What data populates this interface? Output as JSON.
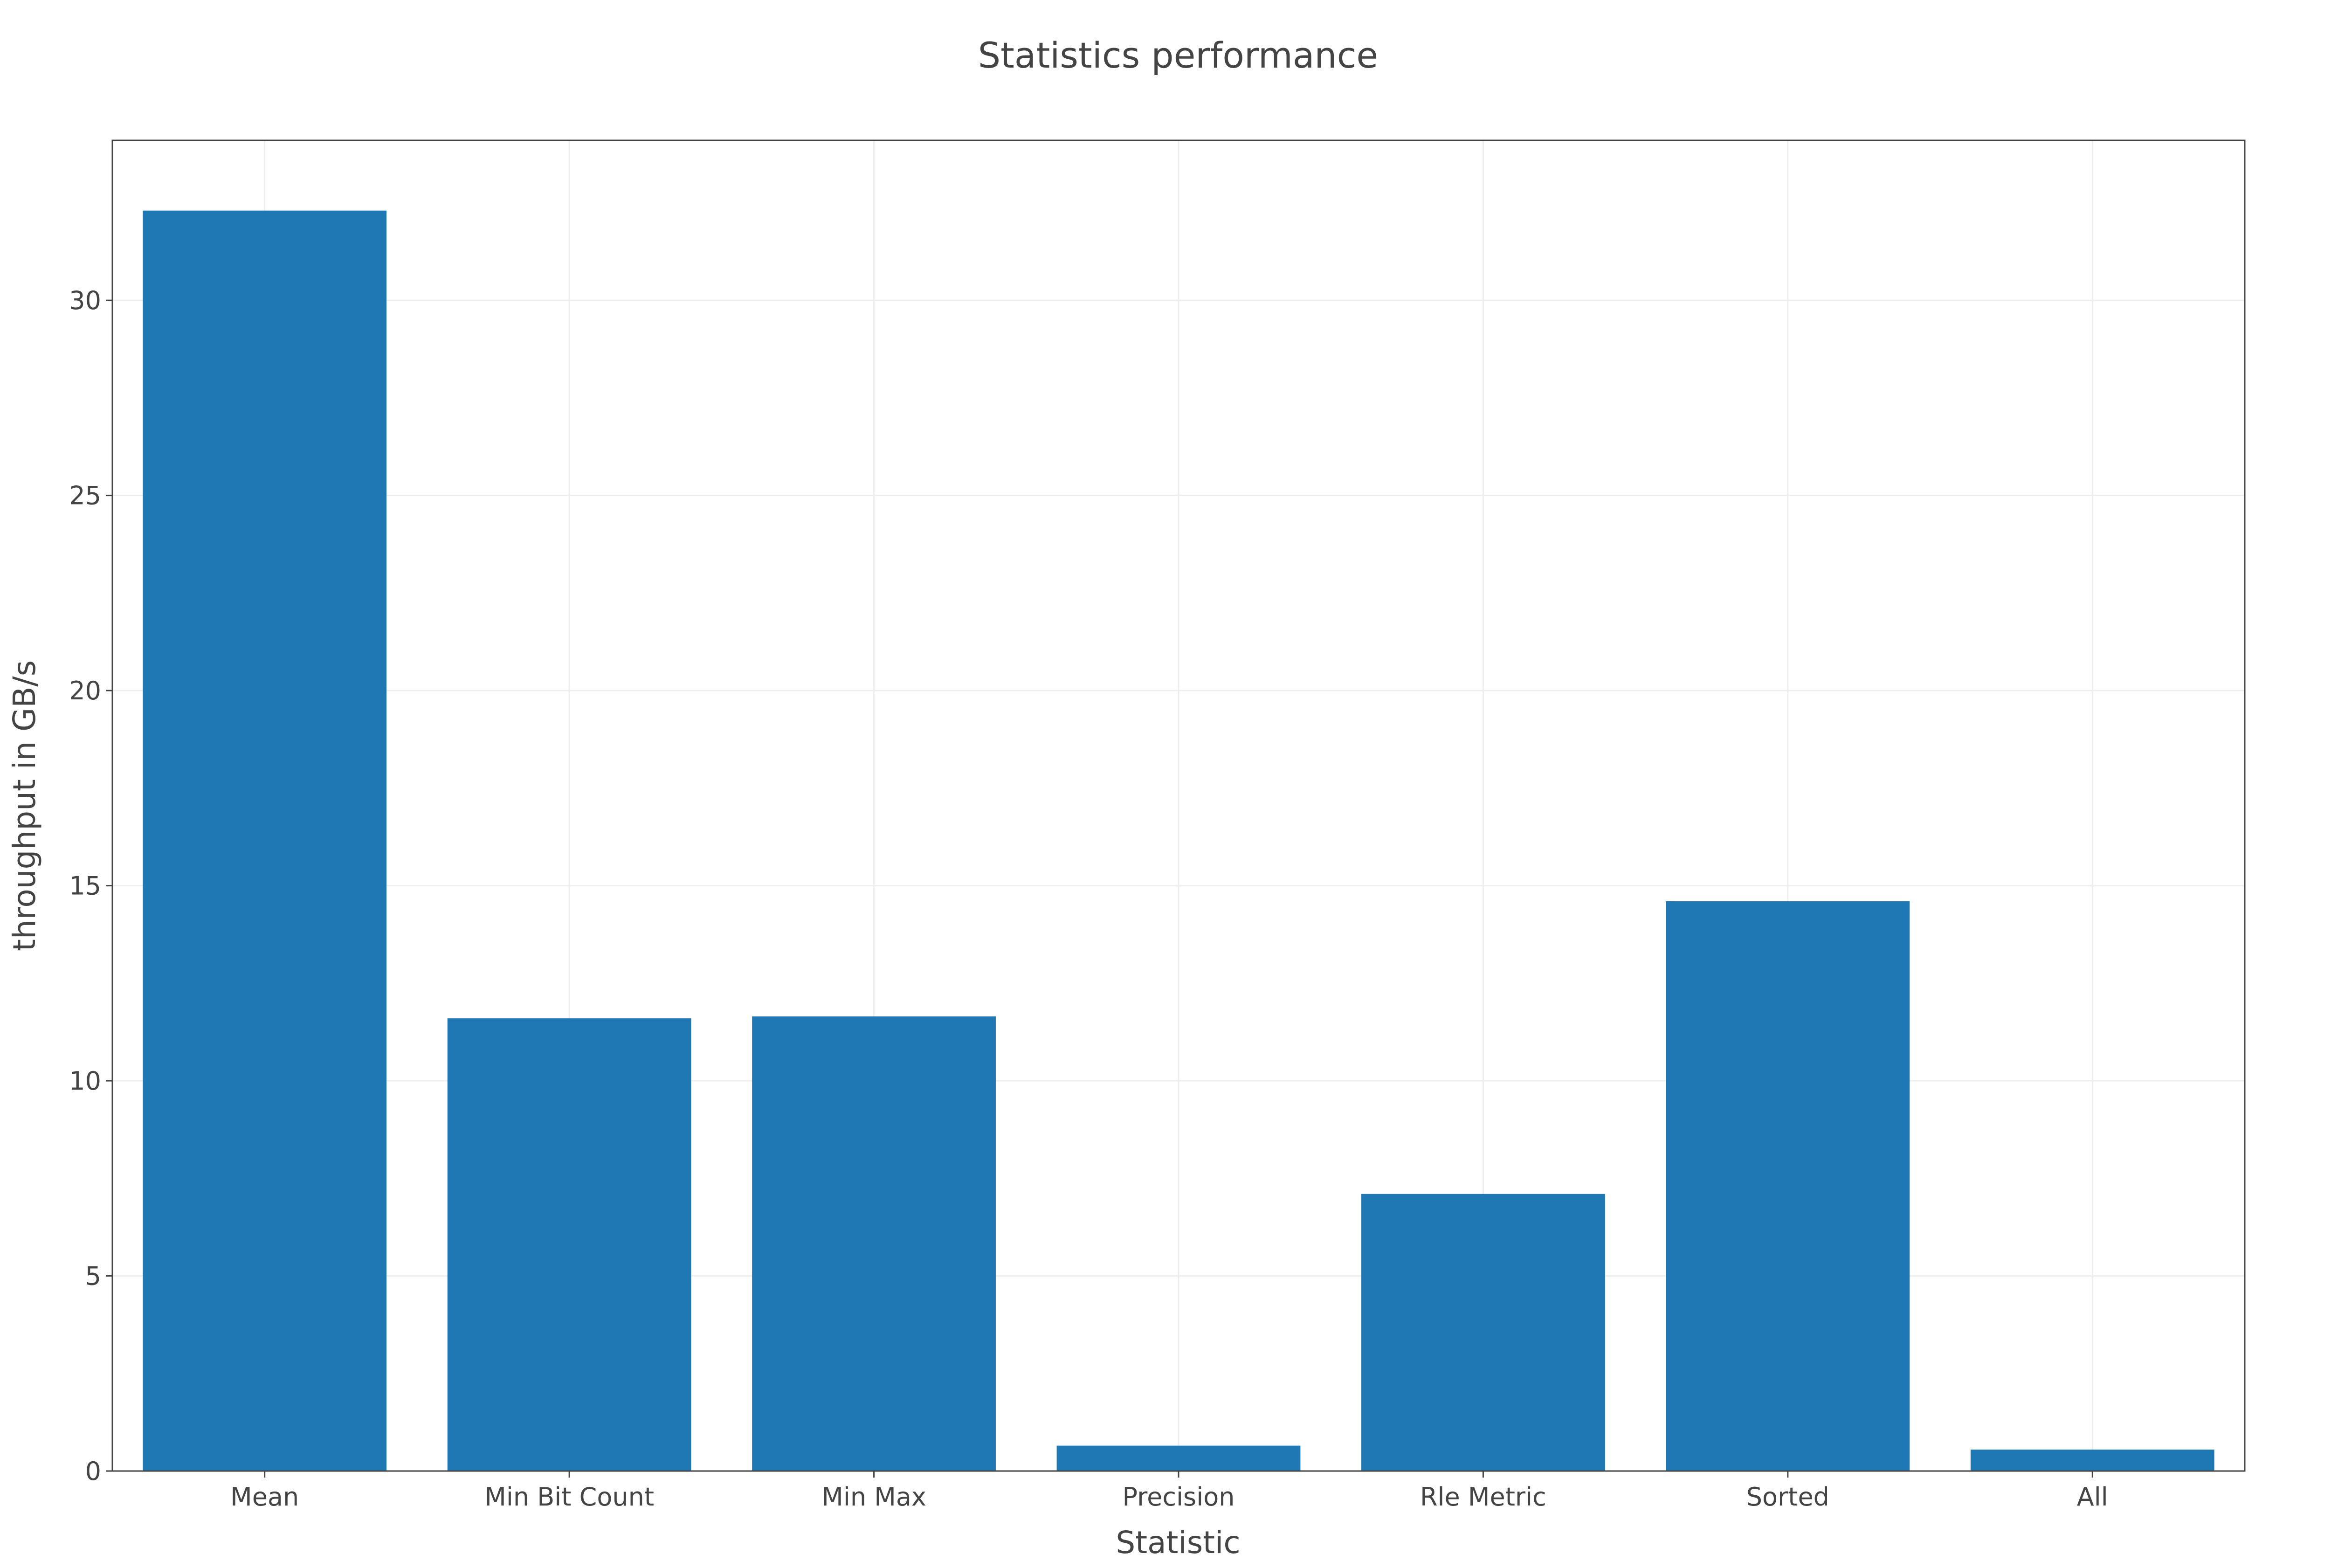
{
  "chart_data": {
    "type": "bar",
    "title": "Statistics performance",
    "xlabel": "Statistic",
    "ylabel": "throughput in GB/s",
    "categories": [
      "Mean",
      "Min Bit Count",
      "Min Max",
      "Precision",
      "Rle Metric",
      "Sorted",
      "All"
    ],
    "values": [
      32.3,
      11.6,
      11.65,
      0.65,
      7.1,
      14.6,
      0.55
    ],
    "ylim": [
      0,
      34.1
    ],
    "yticks": [
      0,
      5,
      10,
      15,
      20,
      25,
      30
    ],
    "grid": true,
    "legend": "none",
    "colors": {
      "bar": "#1f77b4",
      "grid": "#eeeeee",
      "frame": "#444444",
      "text": "#444444"
    }
  }
}
